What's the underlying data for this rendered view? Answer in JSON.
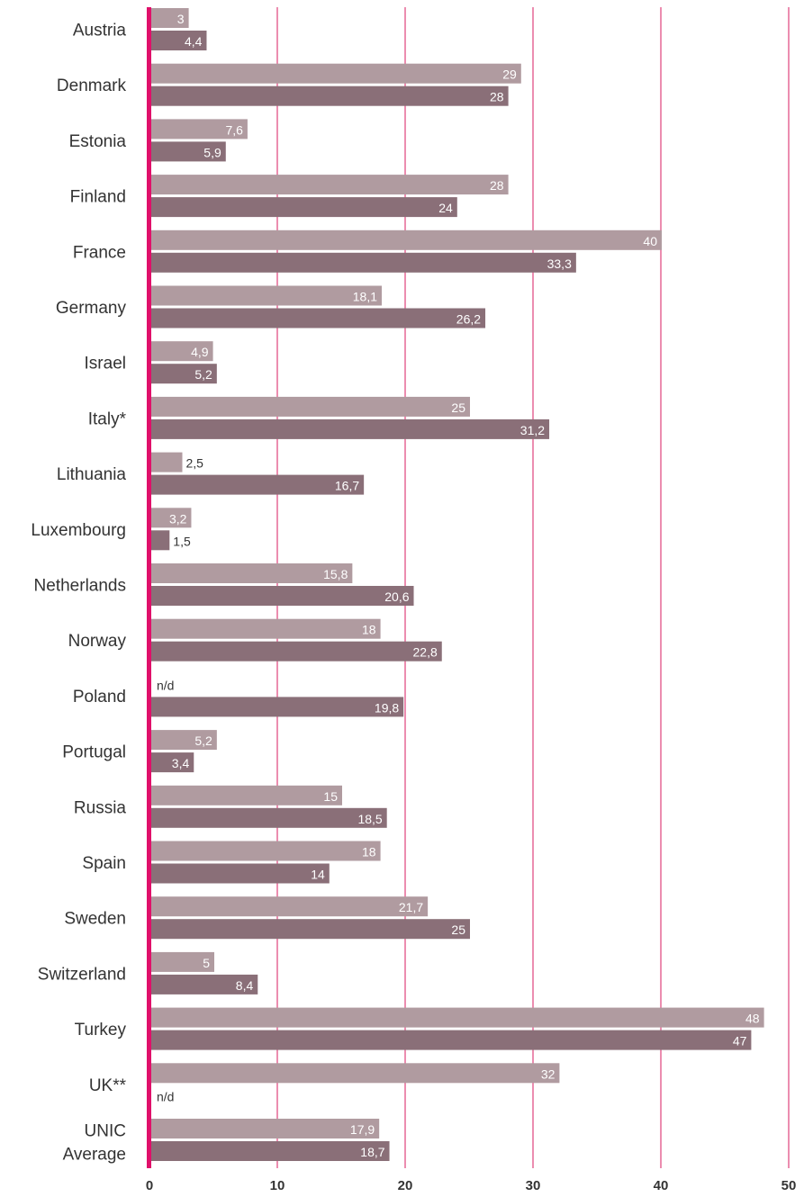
{
  "chart_data": {
    "type": "bar",
    "orientation": "horizontal",
    "categories": [
      "Austria",
      "Denmark",
      "Estonia",
      "Finland",
      "France",
      "Germany",
      "Israel",
      "Italy*",
      "Lithuania",
      "Luxembourg",
      "Netherlands",
      "Norway",
      "Poland",
      "Portugal",
      "Russia",
      "Spain",
      "Sweden",
      "Switzerland",
      "Turkey",
      "UK**",
      "UNIC Average"
    ],
    "category_lines": [
      [
        "Austria"
      ],
      [
        "Denmark"
      ],
      [
        "Estonia"
      ],
      [
        "Finland"
      ],
      [
        "France"
      ],
      [
        "Germany"
      ],
      [
        "Israel"
      ],
      [
        "Italy*"
      ],
      [
        "Lithuania"
      ],
      [
        "Luxembourg"
      ],
      [
        "Netherlands"
      ],
      [
        "Norway"
      ],
      [
        "Poland"
      ],
      [
        "Portugal"
      ],
      [
        "Russia"
      ],
      [
        "Spain"
      ],
      [
        "Sweden"
      ],
      [
        "Switzerland"
      ],
      [
        "Turkey"
      ],
      [
        "UK**"
      ],
      [
        "UNIC",
        "Average"
      ]
    ],
    "series": [
      {
        "color": "#b09ba0",
        "values": [
          3,
          29,
          7.6,
          28,
          40,
          18.1,
          4.9,
          25,
          2.5,
          3.2,
          15.8,
          18,
          null,
          5.2,
          15,
          18,
          21.7,
          5,
          48,
          32,
          17.9
        ],
        "labels": [
          "3",
          "29",
          "7,6",
          "28",
          "40",
          "18,1",
          "4,9",
          "25",
          "2,5",
          "3,2",
          "15,8",
          "18",
          "n/d",
          "5,2",
          "15",
          "18",
          "21,7",
          "5",
          "48",
          "32",
          "17,9"
        ]
      },
      {
        "color": "#8a6f78",
        "values": [
          4.4,
          28,
          5.9,
          24,
          33.3,
          26.2,
          5.2,
          31.2,
          16.7,
          1.5,
          20.6,
          22.8,
          19.8,
          3.4,
          18.5,
          14,
          25,
          8.4,
          47,
          null,
          18.7
        ],
        "labels": [
          "4,4",
          "28",
          "5,9",
          "24",
          "33,3",
          "26,2",
          "5,2",
          "31,2",
          "16,7",
          "1,5",
          "20,6",
          "22,8",
          "19,8",
          "3,4",
          "18,5",
          "14",
          "25",
          "8,4",
          "47",
          "n/d",
          "18,7"
        ]
      }
    ],
    "xlim": [
      0,
      50
    ],
    "xticks": [
      "0",
      "10",
      "20",
      "30",
      "40",
      "50"
    ],
    "grid": "vertical",
    "gridline_color": "#d81b60",
    "axis_color": "#e0106a",
    "title": "",
    "xlabel": "",
    "ylabel": ""
  }
}
